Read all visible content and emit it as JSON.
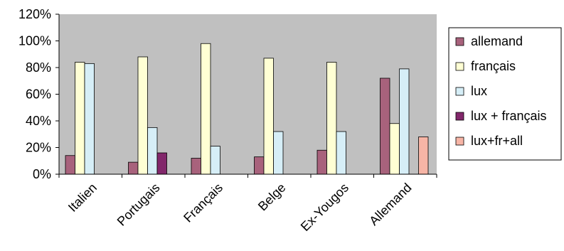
{
  "chart_data": {
    "type": "bar",
    "categories": [
      "Italien",
      "Portugais",
      "Français",
      "Belge",
      "Ex-Yougos",
      "Allemand"
    ],
    "series": [
      {
        "name": "allemand",
        "color": "#a8627c",
        "values": [
          14,
          9,
          12,
          13,
          18,
          72
        ]
      },
      {
        "name": "français",
        "color": "#ffffd4",
        "values": [
          84,
          88,
          98,
          87,
          84,
          38
        ]
      },
      {
        "name": "lux",
        "color": "#d6eef7",
        "values": [
          83,
          35,
          21,
          32,
          32,
          79
        ]
      },
      {
        "name": "lux + français",
        "color": "#82276b",
        "values": [
          0,
          16,
          0,
          0,
          0,
          0
        ]
      },
      {
        "name": "lux+fr+all",
        "color": "#f7b5a6",
        "values": [
          0,
          0,
          0,
          0,
          0,
          28
        ]
      }
    ],
    "ylim": [
      0,
      120
    ],
    "yticks": [
      "0%",
      "20%",
      "40%",
      "60%",
      "80%",
      "100%",
      "120%"
    ],
    "plot_background": "#c0c0c0",
    "grid": false,
    "legend_position": "right"
  }
}
